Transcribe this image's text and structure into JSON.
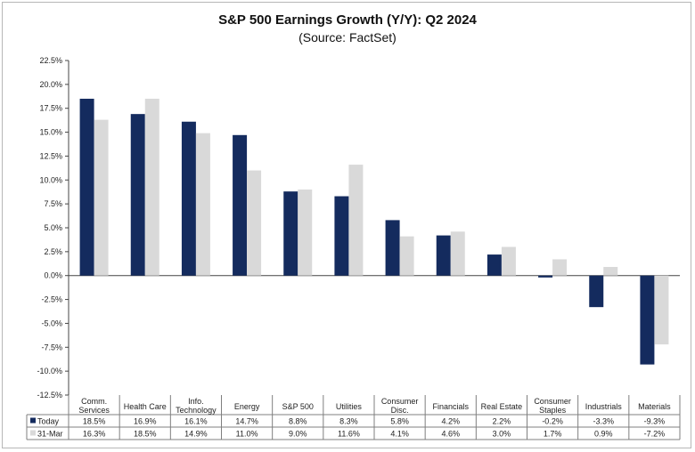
{
  "chart_data": {
    "type": "bar",
    "title": "S&P 500 Earnings Growth (Y/Y): Q2 2024",
    "subtitle": "(Source: FactSet)",
    "categories": [
      [
        "Comm.",
        "Services"
      ],
      [
        "Health Care"
      ],
      [
        "Info.",
        "Technology"
      ],
      [
        "Energy"
      ],
      [
        "S&P 500"
      ],
      [
        "Utilities"
      ],
      [
        "Consumer",
        "Disc."
      ],
      [
        "Financials"
      ],
      [
        "Real Estate"
      ],
      [
        "Consumer",
        "Staples"
      ],
      [
        "Industrials"
      ],
      [
        "Materials"
      ]
    ],
    "series": [
      {
        "name": "Today",
        "color": "#142b5e",
        "values": [
          18.5,
          16.9,
          16.1,
          14.7,
          8.8,
          8.3,
          5.8,
          4.2,
          2.2,
          -0.2,
          -3.3,
          -9.3
        ],
        "labels": [
          "18.5%",
          "16.9%",
          "16.1%",
          "14.7%",
          "8.8%",
          "8.3%",
          "5.8%",
          "4.2%",
          "2.2%",
          "-0.2%",
          "-3.3%",
          "-9.3%"
        ]
      },
      {
        "name": "31-Mar",
        "color": "#d9d9d9",
        "values": [
          16.3,
          18.5,
          14.9,
          11.0,
          9.0,
          11.6,
          4.1,
          4.6,
          3.0,
          1.7,
          0.9,
          -7.2
        ],
        "labels": [
          "16.3%",
          "18.5%",
          "14.9%",
          "11.0%",
          "9.0%",
          "11.6%",
          "4.1%",
          "4.6%",
          "3.0%",
          "1.7%",
          "0.9%",
          "-7.2%"
        ]
      }
    ],
    "ylim": [
      -12.5,
      22.5
    ],
    "yticks": [
      22.5,
      20.0,
      17.5,
      15.0,
      12.5,
      10.0,
      7.5,
      5.0,
      2.5,
      0.0,
      -2.5,
      -5.0,
      -7.5,
      -10.0,
      -12.5
    ],
    "ytick_labels": [
      "22.5%",
      "20.0%",
      "17.5%",
      "15.0%",
      "12.5%",
      "10.0%",
      "7.5%",
      "5.0%",
      "2.5%",
      "0.0%",
      "-2.5%",
      "-5.0%",
      "-7.5%",
      "-10.0%",
      "-12.5%"
    ],
    "grid": false,
    "legend": "data-table"
  }
}
